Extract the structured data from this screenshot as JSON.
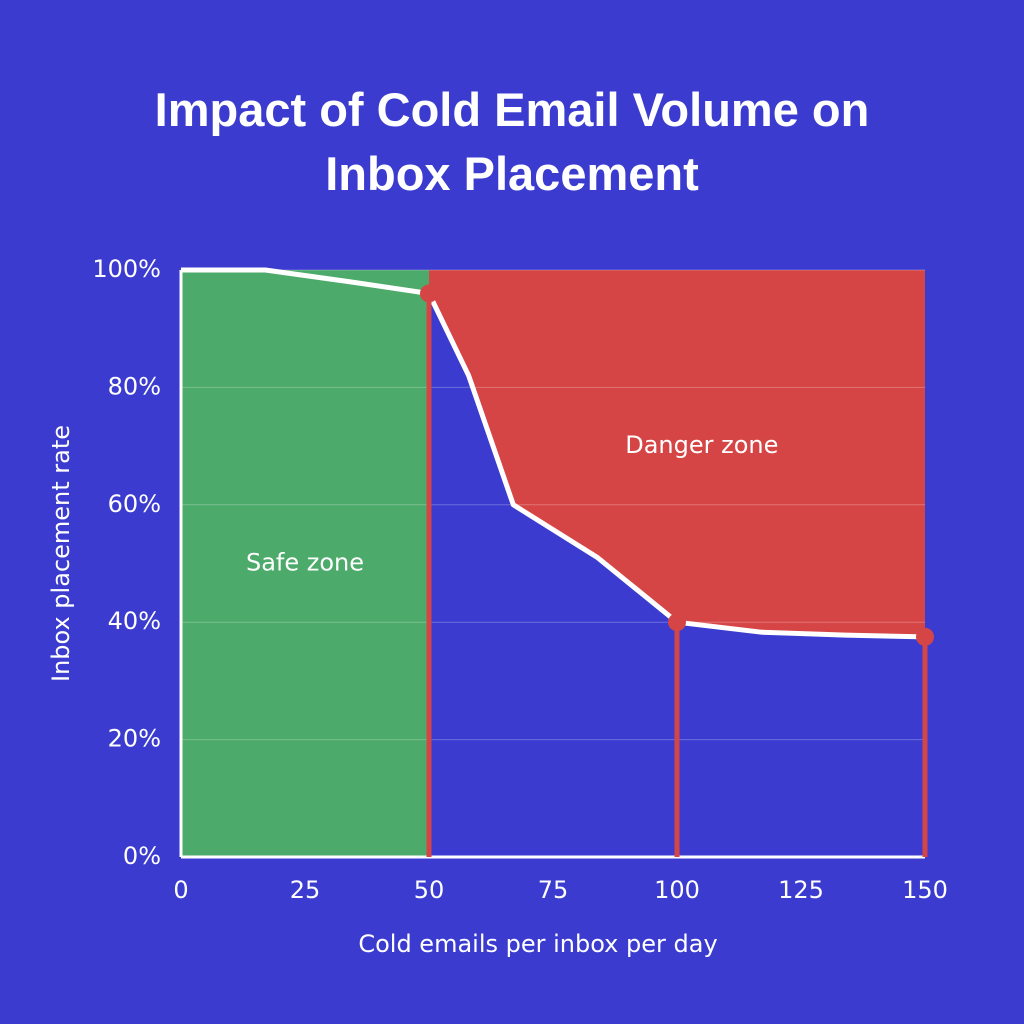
{
  "chart_data": {
    "type": "line",
    "title": "Impact of Cold Email Volume on Inbox Placement",
    "x_label": "Cold emails per inbox per day",
    "y_label": "Inbox placement rate",
    "x": [
      0,
      17,
      34,
      50,
      58,
      67,
      84,
      100,
      117,
      134,
      150
    ],
    "values": [
      100,
      100,
      98,
      96,
      82,
      60,
      51,
      40,
      38.3,
      37.8,
      37.5
    ],
    "color": "#ffffff",
    "xlim": [
      0,
      150
    ],
    "xticks": [
      0,
      25,
      50,
      75,
      100,
      125,
      150
    ],
    "ylim": [
      0,
      100
    ],
    "yticks": [
      {
        "value": 0,
        "label": "0%"
      },
      {
        "value": 20,
        "label": "20%"
      },
      {
        "value": 40,
        "label": "40%"
      },
      {
        "value": 60,
        "label": "60%"
      },
      {
        "value": 80,
        "label": "80%"
      },
      {
        "value": 100,
        "label": "100%"
      }
    ],
    "grid": true,
    "zones": [
      {
        "name": "Safe zone",
        "from": 0,
        "to": 50,
        "color": "#4caa6a"
      },
      {
        "name": "Danger zone",
        "from": 50,
        "to": 150,
        "color": "#d64545"
      }
    ],
    "marker_x": [
      50,
      100,
      150
    ],
    "marker_color": "#d64545"
  }
}
